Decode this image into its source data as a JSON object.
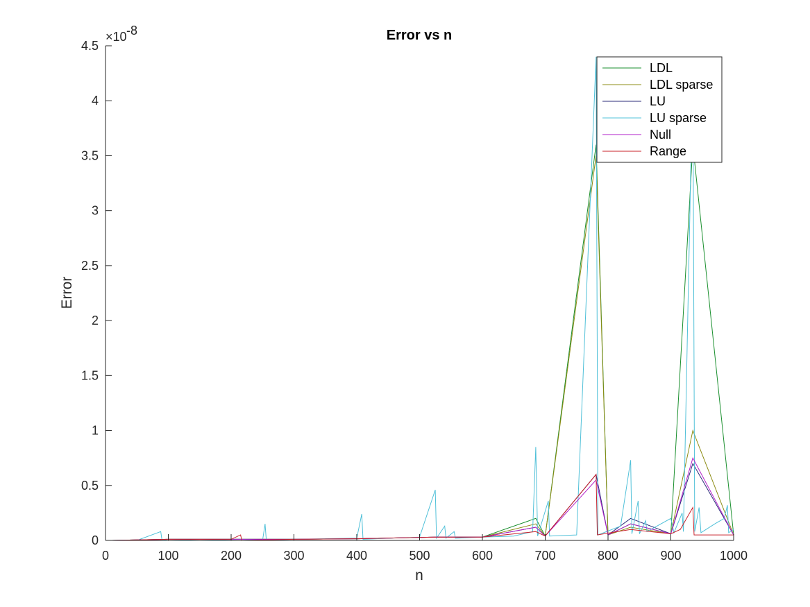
{
  "chart_data": {
    "type": "line",
    "title": "Error vs n",
    "xlabel": "n",
    "ylabel": "Error",
    "xlim": [
      0,
      1000
    ],
    "ylim": [
      0,
      4.5
    ],
    "y_exponent_label": "×10",
    "y_exponent_power": "-8",
    "xticks": [
      "0",
      "100",
      "200",
      "300",
      "400",
      "500",
      "600",
      "700",
      "800",
      "900",
      "1000"
    ],
    "xtick_values": [
      0,
      100,
      200,
      300,
      400,
      500,
      600,
      700,
      800,
      900,
      1000
    ],
    "yticks": [
      "0",
      "0.5",
      "1",
      "1.5",
      "2",
      "2.5",
      "3",
      "3.5",
      "4",
      "4.5"
    ],
    "ytick_values": [
      0,
      0.5,
      1,
      1.5,
      2,
      2.5,
      3,
      3.5,
      4,
      4.5
    ],
    "grid": false,
    "legend_position": "top-right",
    "series": [
      {
        "name": "LDL",
        "color": "#1a8f2e",
        "points": [
          [
            10,
            0.0
          ],
          [
            100,
            0.01
          ],
          [
            200,
            0.01
          ],
          [
            300,
            0.01
          ],
          [
            400,
            0.015
          ],
          [
            525,
            0.03
          ],
          [
            600,
            0.03
          ],
          [
            685,
            0.2
          ],
          [
            700,
            0.04
          ],
          [
            781,
            3.6
          ],
          [
            800,
            0.05
          ],
          [
            836,
            0.15
          ],
          [
            900,
            0.06
          ],
          [
            935,
            3.6
          ],
          [
            1000,
            0.05
          ]
        ]
      },
      {
        "name": "LDL sparse",
        "color": "#8c8c14",
        "points": [
          [
            10,
            0.0
          ],
          [
            100,
            0.01
          ],
          [
            200,
            0.01
          ],
          [
            300,
            0.01
          ],
          [
            400,
            0.015
          ],
          [
            525,
            0.03
          ],
          [
            600,
            0.03
          ],
          [
            685,
            0.15
          ],
          [
            700,
            0.04
          ],
          [
            781,
            3.5
          ],
          [
            800,
            0.05
          ],
          [
            836,
            0.12
          ],
          [
            900,
            0.06
          ],
          [
            935,
            1.0
          ],
          [
            1000,
            0.05
          ]
        ]
      },
      {
        "name": "LU",
        "color": "#2b2b7a",
        "points": [
          [
            10,
            0.0
          ],
          [
            100,
            0.01
          ],
          [
            200,
            0.01
          ],
          [
            300,
            0.01
          ],
          [
            400,
            0.015
          ],
          [
            525,
            0.03
          ],
          [
            600,
            0.03
          ],
          [
            685,
            0.12
          ],
          [
            700,
            0.04
          ],
          [
            781,
            0.6
          ],
          [
            800,
            0.05
          ],
          [
            836,
            0.2
          ],
          [
            900,
            0.06
          ],
          [
            935,
            0.7
          ],
          [
            1000,
            0.05
          ]
        ]
      },
      {
        "name": "LU sparse",
        "color": "#4fc0d8",
        "points": [
          [
            10,
            0.0
          ],
          [
            50,
            0.0
          ],
          [
            88,
            0.08
          ],
          [
            90,
            0.0
          ],
          [
            100,
            0.01
          ],
          [
            150,
            0.0
          ],
          [
            215,
            0.01
          ],
          [
            250,
            0.0
          ],
          [
            254,
            0.15
          ],
          [
            256,
            0.0
          ],
          [
            300,
            0.01
          ],
          [
            400,
            0.02
          ],
          [
            408,
            0.24
          ],
          [
            410,
            0.01
          ],
          [
            500,
            0.03
          ],
          [
            525,
            0.46
          ],
          [
            527,
            0.02
          ],
          [
            540,
            0.13
          ],
          [
            542,
            0.02
          ],
          [
            555,
            0.08
          ],
          [
            557,
            0.02
          ],
          [
            600,
            0.03
          ],
          [
            650,
            0.04
          ],
          [
            680,
            0.08
          ],
          [
            685,
            0.85
          ],
          [
            688,
            0.04
          ],
          [
            705,
            0.36
          ],
          [
            707,
            0.04
          ],
          [
            750,
            0.05
          ],
          [
            781,
            4.4
          ],
          [
            784,
            0.05
          ],
          [
            820,
            0.13
          ],
          [
            836,
            0.73
          ],
          [
            838,
            0.06
          ],
          [
            848,
            0.36
          ],
          [
            850,
            0.06
          ],
          [
            860,
            0.18
          ],
          [
            862,
            0.08
          ],
          [
            900,
            0.2
          ],
          [
            905,
            0.07
          ],
          [
            918,
            0.25
          ],
          [
            920,
            0.08
          ],
          [
            935,
            4.3
          ],
          [
            938,
            0.08
          ],
          [
            945,
            0.3
          ],
          [
            948,
            0.07
          ],
          [
            970,
            0.15
          ],
          [
            985,
            0.2
          ],
          [
            990,
            0.32
          ],
          [
            992,
            0.07
          ],
          [
            1000,
            0.1
          ]
        ]
      },
      {
        "name": "Null",
        "color": "#b21fc8",
        "points": [
          [
            10,
            0.0
          ],
          [
            100,
            0.01
          ],
          [
            200,
            0.01
          ],
          [
            300,
            0.01
          ],
          [
            400,
            0.015
          ],
          [
            525,
            0.03
          ],
          [
            600,
            0.03
          ],
          [
            685,
            0.12
          ],
          [
            700,
            0.04
          ],
          [
            781,
            0.55
          ],
          [
            800,
            0.05
          ],
          [
            836,
            0.15
          ],
          [
            900,
            0.06
          ],
          [
            935,
            0.75
          ],
          [
            1000,
            0.05
          ]
        ]
      },
      {
        "name": "Range",
        "color": "#c8202a",
        "points": [
          [
            10,
            0.0
          ],
          [
            100,
            0.01
          ],
          [
            200,
            0.01
          ],
          [
            215,
            0.05
          ],
          [
            217,
            0.0
          ],
          [
            300,
            0.01
          ],
          [
            400,
            0.015
          ],
          [
            525,
            0.03
          ],
          [
            600,
            0.03
          ],
          [
            685,
            0.08
          ],
          [
            700,
            0.04
          ],
          [
            781,
            0.6
          ],
          [
            783,
            0.05
          ],
          [
            836,
            0.1
          ],
          [
            900,
            0.06
          ],
          [
            915,
            0.1
          ],
          [
            935,
            0.3
          ],
          [
            937,
            0.05
          ],
          [
            1000,
            0.05
          ]
        ]
      }
    ]
  }
}
